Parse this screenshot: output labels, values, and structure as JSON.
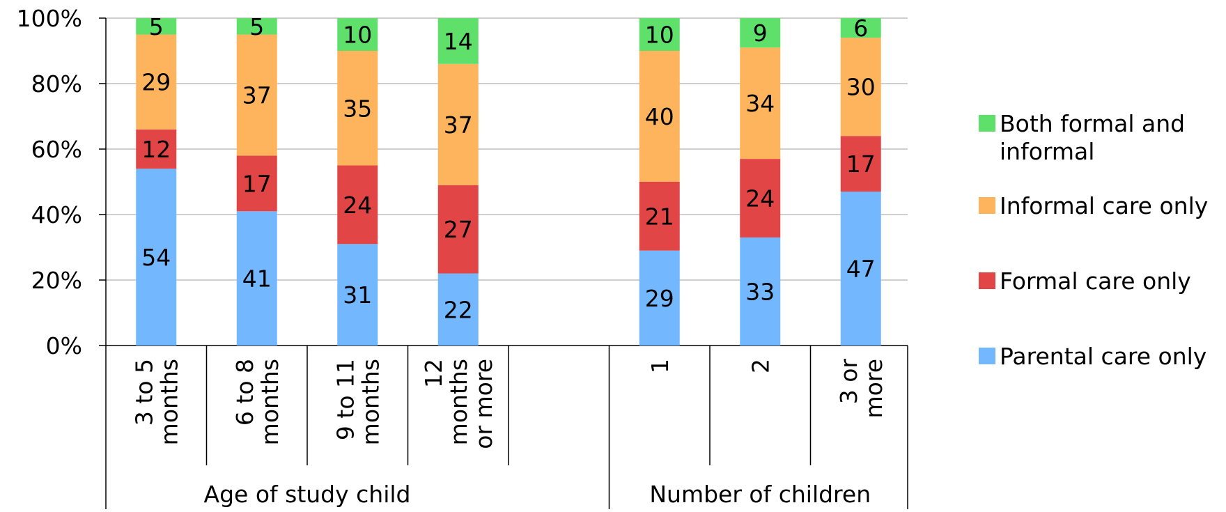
{
  "chart_data": {
    "type": "bar",
    "stacked": true,
    "percent_stacked": true,
    "y_ticks": [
      "0%",
      "20%",
      "40%",
      "60%",
      "80%",
      "100%"
    ],
    "ylim": [
      0,
      100
    ],
    "grid": true,
    "legend_placement": "right",
    "groups": [
      {
        "label": "Age of study child",
        "categories": [
          "3 to 5 months",
          "6 to 8 months",
          "9 to 11 months",
          "12 months or more"
        ],
        "category_lines": [
          [
            "3 to 5",
            "months"
          ],
          [
            "6 to 8",
            "months"
          ],
          [
            "9 to 11",
            "months"
          ],
          [
            "12",
            "months",
            "or more"
          ]
        ]
      },
      {
        "label": "Number of children",
        "categories": [
          "1",
          "2",
          "3 or more"
        ],
        "category_lines": [
          [
            "1"
          ],
          [
            "2"
          ],
          [
            "3 or",
            "more"
          ]
        ]
      }
    ],
    "series": [
      {
        "name": "Parental care only",
        "color": "#73b8ff",
        "values": [
          54,
          41,
          31,
          22,
          29,
          33,
          47
        ]
      },
      {
        "name": "Formal care only",
        "color": "#e24545",
        "values": [
          12,
          17,
          24,
          27,
          21,
          24,
          17
        ]
      },
      {
        "name": "Informal care only",
        "color": "#fdb45c",
        "values": [
          29,
          37,
          35,
          37,
          40,
          34,
          30
        ]
      },
      {
        "name": "Both formal and informal",
        "color": "#5ee06b",
        "values": [
          5,
          5,
          10,
          14,
          10,
          9,
          6
        ]
      }
    ]
  },
  "legend": {
    "items": [
      {
        "label": "Both formal and informal",
        "color": "#5ee06b"
      },
      {
        "label": "Informal care only",
        "color": "#fdb45c"
      },
      {
        "label": "Formal care only",
        "color": "#e24545"
      },
      {
        "label": "Parental care only",
        "color": "#73b8ff"
      }
    ]
  }
}
